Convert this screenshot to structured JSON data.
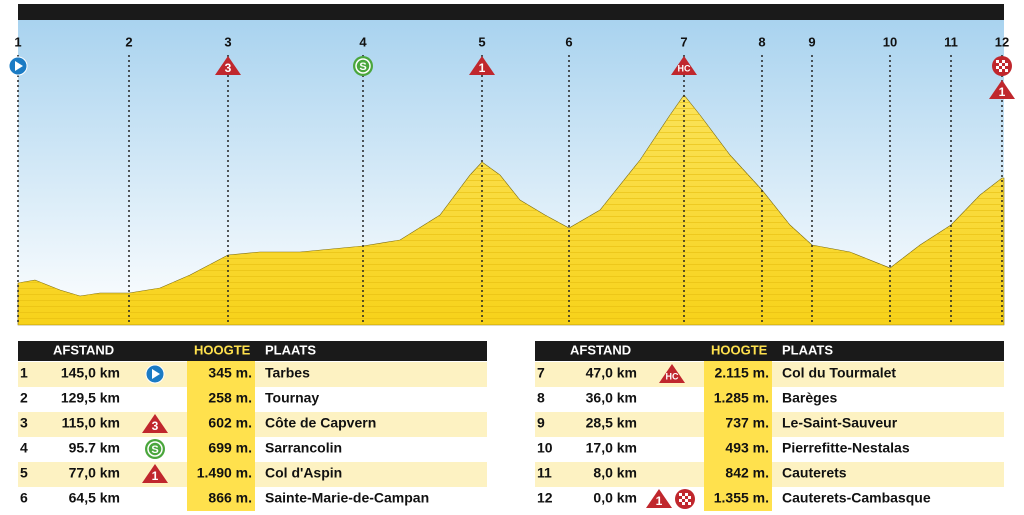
{
  "profile": {
    "markers": [
      {
        "label": "1",
        "badges": [
          {
            "type": "start"
          }
        ]
      },
      {
        "label": "2",
        "badges": []
      },
      {
        "label": "3",
        "badges": [
          {
            "type": "climb",
            "text": "3"
          }
        ]
      },
      {
        "label": "4",
        "badges": [
          {
            "type": "sprint",
            "text": "S"
          }
        ]
      },
      {
        "label": "5",
        "badges": [
          {
            "type": "climb",
            "text": "1"
          }
        ]
      },
      {
        "label": "6",
        "badges": []
      },
      {
        "label": "7",
        "badges": [
          {
            "type": "climb",
            "text": "HC"
          }
        ]
      },
      {
        "label": "8",
        "badges": []
      },
      {
        "label": "9",
        "badges": []
      },
      {
        "label": "10",
        "badges": []
      },
      {
        "label": "11",
        "badges": []
      },
      {
        "label": "12",
        "badges": [
          {
            "type": "finish"
          },
          {
            "type": "climb",
            "text": "1"
          }
        ]
      }
    ]
  },
  "tables": [
    {
      "headers": [
        "AFSTAND",
        "HOOGTE",
        "PLAATS"
      ],
      "rows": [
        {
          "index": "1",
          "distance": "145,0 km",
          "badges": [
            {
              "type": "start"
            }
          ],
          "height": "345 m.",
          "place": "Tarbes"
        },
        {
          "index": "2",
          "distance": "129,5 km",
          "badges": [],
          "height": "258 m.",
          "place": "Tournay"
        },
        {
          "index": "3",
          "distance": "115,0 km",
          "badges": [
            {
              "type": "climb",
              "text": "3"
            }
          ],
          "height": "602 m.",
          "place": "Côte de Capvern"
        },
        {
          "index": "4",
          "distance": "95.7 km",
          "badges": [
            {
              "type": "sprint",
              "text": "S"
            }
          ],
          "height": "699 m.",
          "place": "Sarrancolin"
        },
        {
          "index": "5",
          "distance": "77,0 km",
          "badges": [
            {
              "type": "climb",
              "text": "1"
            }
          ],
          "height": "1.490 m.",
          "place": "Col d'Aspin"
        },
        {
          "index": "6",
          "distance": "64,5 km",
          "badges": [],
          "height": "866 m.",
          "place": "Sainte-Marie-de-Campan"
        }
      ]
    },
    {
      "headers": [
        "AFSTAND",
        "HOOGTE",
        "PLAATS"
      ],
      "rows": [
        {
          "index": "7",
          "distance": "47,0 km",
          "badges": [
            {
              "type": "climb",
              "text": "HC"
            }
          ],
          "height": "2.115 m.",
          "place": "Col du Tourmalet"
        },
        {
          "index": "8",
          "distance": "36,0 km",
          "badges": [],
          "height": "1.285 m.",
          "place": "Barèges"
        },
        {
          "index": "9",
          "distance": "28,5 km",
          "badges": [],
          "height": "737 m.",
          "place": "Le-Saint-Sauveur"
        },
        {
          "index": "10",
          "distance": "17,0 km",
          "badges": [],
          "height": "493 m.",
          "place": "Pierrefitte-Nestalas"
        },
        {
          "index": "11",
          "distance": "8,0 km",
          "badges": [],
          "height": "842 m.",
          "place": "Cauterets"
        },
        {
          "index": "12",
          "distance": "0,0 km",
          "badges": [
            {
              "type": "climb",
              "text": "1"
            },
            {
              "type": "finish"
            }
          ],
          "height": "1.355 m.",
          "place": "Cauterets-Cambasque"
        }
      ]
    }
  ]
}
